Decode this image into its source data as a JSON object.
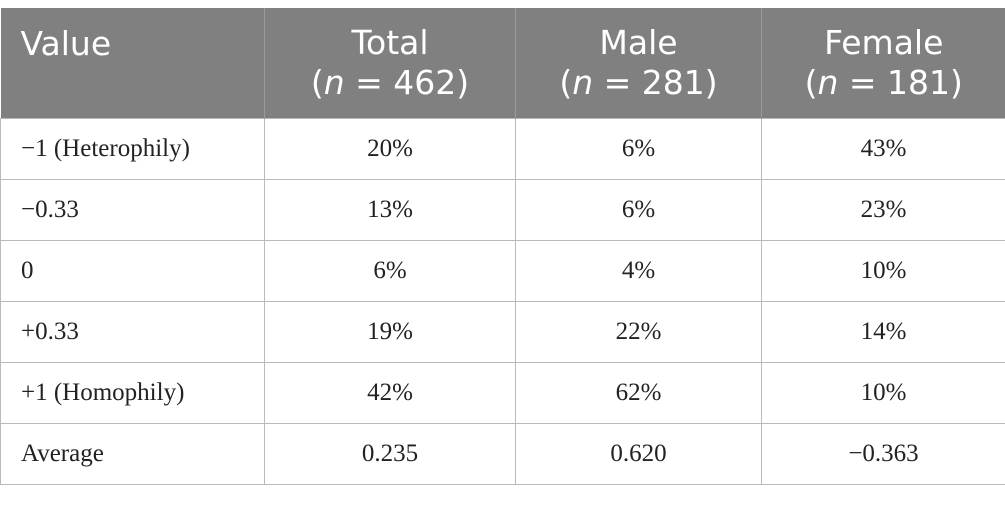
{
  "table": {
    "headers": {
      "value": "Value",
      "total": {
        "name": "Total",
        "n_symbol": "n",
        "n_rest": " = 462)"
      },
      "male": {
        "name": "Male",
        "n_symbol": "n",
        "n_rest": " = 281)"
      },
      "female": {
        "name": "Female",
        "n_symbol": "n",
        "n_rest": " = 181)"
      },
      "open_paren": "("
    },
    "rows": [
      {
        "label": "−1 (Heterophily)",
        "total": "20%",
        "male": "6%",
        "female": "43%"
      },
      {
        "label": "−0.33",
        "total": "13%",
        "male": "6%",
        "female": "23%"
      },
      {
        "label": "0",
        "total": "6%",
        "male": "4%",
        "female": "10%"
      },
      {
        "label": "+0.33",
        "total": "19%",
        "male": "22%",
        "female": "14%"
      },
      {
        "label": "+1 (Homophily)",
        "total": "42%",
        "male": "62%",
        "female": "10%"
      },
      {
        "label": "Average",
        "total": "0.235",
        "male": "0.620",
        "female": "−0.363"
      }
    ]
  },
  "colors": {
    "header_background": "#7f807f",
    "header_text": "#ffffff",
    "grid": "#b9b9b9"
  }
}
